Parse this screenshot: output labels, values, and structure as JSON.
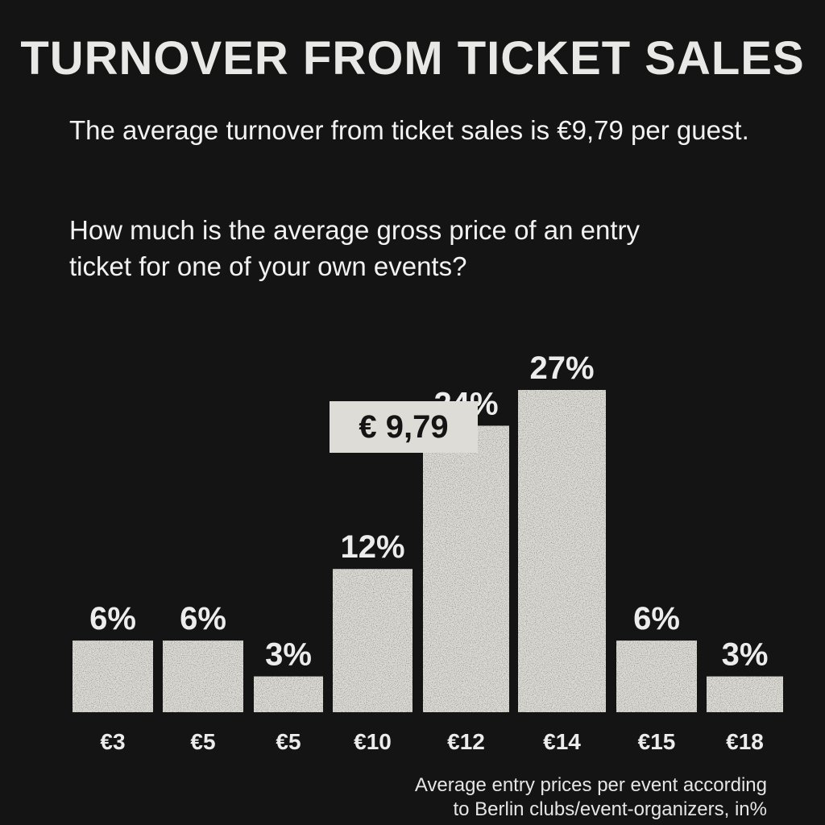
{
  "title": "TURNOVER FROM TICKET SALES",
  "subtitle": "The average turnover from ticket sales is €9,79 per guest.",
  "question": "How much is the average gross price of an entry ticket for one of your own events?",
  "average_label": "€ 9,79",
  "source_line1": "Average entry prices per event according",
  "source_line2": "to Berlin clubs/event-organizers, in%",
  "colors": {
    "background": "#141414",
    "bar": "#dedcd6",
    "text": "#ededed"
  },
  "chart_data": {
    "type": "bar",
    "categories": [
      "€3",
      "€5",
      "€5",
      "€10",
      "€12",
      "€14",
      "€15",
      "€18"
    ],
    "values": [
      6,
      6,
      3,
      12,
      24,
      27,
      6,
      3
    ],
    "value_labels": [
      "6%",
      "6%",
      "3%",
      "12%",
      "24%",
      "27%",
      "6%",
      "3%"
    ],
    "unit": "%",
    "grid": false,
    "legend": "none"
  }
}
